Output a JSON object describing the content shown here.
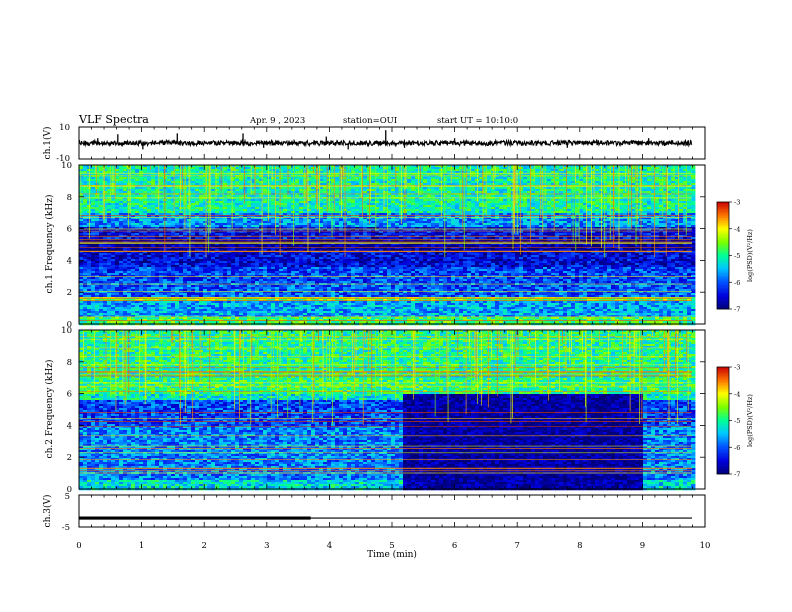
{
  "header": {
    "title": "VLF Spectra",
    "date": "Apr. 9 , 2023",
    "station": "station=OUI",
    "start": "start UT = 10:10:0"
  },
  "chart_data": [
    {
      "type": "line",
      "name": "ch1-waveform",
      "ylabel": "ch.1(V)",
      "ylim": [
        -10,
        10
      ],
      "yticks": [
        "10",
        "-10"
      ],
      "xlim": [
        0,
        10
      ],
      "baseline": 0,
      "spikes": [
        {
          "x": 0.3,
          "y": 3
        },
        {
          "x": 0.62,
          "y": 5.5
        },
        {
          "x": 1.02,
          "y": -4
        },
        {
          "x": 1.57,
          "y": 6
        },
        {
          "x": 2.62,
          "y": 6
        },
        {
          "x": 2.95,
          "y": -3
        },
        {
          "x": 3.95,
          "y": 4
        },
        {
          "x": 4.3,
          "y": -4
        },
        {
          "x": 4.9,
          "y": 8
        },
        {
          "x": 5.2,
          "y": -3
        },
        {
          "x": 6.0,
          "y": 3
        },
        {
          "x": 7.8,
          "y": -3
        },
        {
          "x": 9.1,
          "y": 3
        }
      ]
    },
    {
      "type": "heatmap",
      "name": "ch1-spectrogram",
      "ylabel": "ch.1 Frequency (kHz)",
      "ylim": [
        0,
        10
      ],
      "yticks": [
        "0",
        "2",
        "4",
        "6",
        "8",
        "10"
      ],
      "xlim": [
        0,
        10
      ],
      "band_log_psd": [
        {
          "f": [
            0,
            0.5
          ],
          "v": -4.8
        },
        {
          "f": [
            0.5,
            1.5
          ],
          "v": -5.6
        },
        {
          "f": [
            1.5,
            1.7
          ],
          "v": -4.6
        },
        {
          "f": [
            1.7,
            2.6
          ],
          "v": -6.0
        },
        {
          "f": [
            2.6,
            3.6
          ],
          "v": -6.1
        },
        {
          "f": [
            3.6,
            4.6
          ],
          "v": -6.5
        },
        {
          "f": [
            4.6,
            5.4
          ],
          "v": -6.8
        },
        {
          "f": [
            5.4,
            6.1
          ],
          "v": -6.4
        },
        {
          "f": [
            6.1,
            7.0
          ],
          "v": -5.7
        },
        {
          "f": [
            7.0,
            10.0
          ],
          "v": -5.1
        }
      ]
    },
    {
      "type": "heatmap",
      "name": "ch2-spectrogram",
      "ylabel": "ch.2 Frequency (kHz)",
      "ylim": [
        0,
        10
      ],
      "yticks": [
        "0",
        "2",
        "4",
        "6",
        "8",
        "10"
      ],
      "xlim": [
        0,
        10
      ],
      "band_log_psd": [
        {
          "f": [
            0,
            0.6
          ],
          "v": -5.3
        },
        {
          "f": [
            0.6,
            2.0
          ],
          "v": -5.8
        },
        {
          "f": [
            2.0,
            4.0
          ],
          "v": -5.8
        },
        {
          "f": [
            4.0,
            5.6
          ],
          "v": -6.1
        },
        {
          "f": [
            5.6,
            6.0
          ],
          "v": -5.2
        },
        {
          "f": [
            6.0,
            7.0
          ],
          "v": -4.9
        },
        {
          "f": [
            7.0,
            10.0
          ],
          "v": -5.0
        }
      ],
      "quiet_block": {
        "t": [
          5.2,
          9.0
        ],
        "f": [
          0,
          6.0
        ],
        "v": -6.8
      }
    },
    {
      "type": "line",
      "name": "ch3-waveform",
      "ylabel": "ch.3(V)",
      "ylim": [
        -5,
        5
      ],
      "yticks": [
        "5",
        "-5"
      ],
      "xlim": [
        0,
        10
      ],
      "xticks": [
        "0",
        "1",
        "2",
        "3",
        "4",
        "5",
        "6",
        "7",
        "8",
        "9",
        "10"
      ],
      "xlabel": "Time (min)",
      "level": -2.2,
      "thick_until": 3.7
    }
  ],
  "colorbar": {
    "label": "log(PSD)(V²/Hz)",
    "range": [
      -7,
      -3
    ],
    "ticks": [
      "-3",
      "-4",
      "-5",
      "-6",
      "-7"
    ]
  }
}
